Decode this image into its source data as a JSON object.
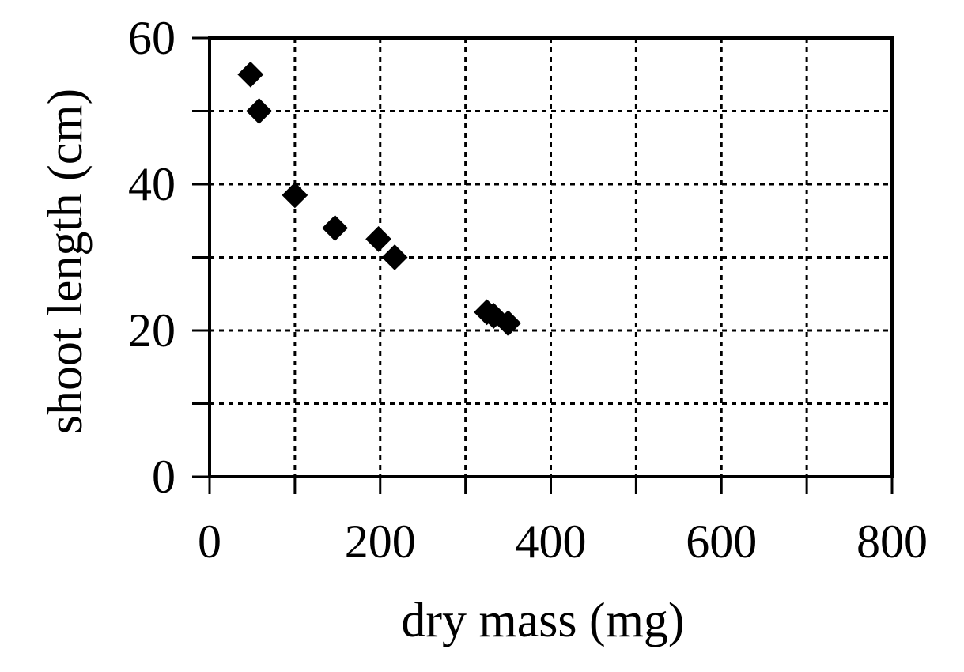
{
  "chart_data": {
    "type": "scatter",
    "xlabel": "dry mass (mg)",
    "ylabel": "shoot length (cm)",
    "xlim": [
      0,
      800
    ],
    "ylim": [
      0,
      60
    ],
    "x_ticks": [
      0,
      200,
      400,
      600,
      800
    ],
    "y_ticks": [
      0,
      20,
      40,
      60
    ],
    "x_tick_labels": [
      "0",
      "200",
      "400",
      "600",
      "800"
    ],
    "y_tick_labels": [
      "0",
      "20",
      "40",
      "60"
    ],
    "x_minor_step": 100,
    "y_minor_step": 10,
    "grid": true,
    "marker": "diamond",
    "marker_color": "#000000",
    "series": [
      {
        "points": [
          {
            "x": 48,
            "y": 55
          },
          {
            "x": 58,
            "y": 50
          },
          {
            "x": 100,
            "y": 38.5
          },
          {
            "x": 147,
            "y": 34
          },
          {
            "x": 198,
            "y": 32.5
          },
          {
            "x": 217,
            "y": 30
          },
          {
            "x": 325,
            "y": 22.5
          },
          {
            "x": 333,
            "y": 22
          },
          {
            "x": 350,
            "y": 21
          }
        ]
      }
    ]
  }
}
